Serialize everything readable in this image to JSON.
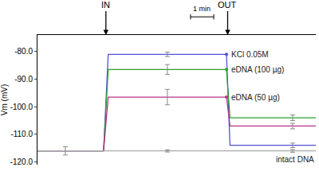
{
  "chart_data": {
    "type": "line",
    "y_label": "Vm (mV)",
    "x": [
      0,
      1.2,
      2.85,
      3.05,
      5.6,
      8.15,
      8.3,
      11,
      12
    ],
    "series": [
      {
        "name": "KCl 0.05M",
        "color": "#5050dc",
        "values": [
          -116,
          -116,
          -116,
          -81,
          -81,
          -81,
          -114,
          -114,
          -114
        ],
        "errors": [
          null,
          null,
          null,
          null,
          0.8,
          null,
          null,
          0.8,
          null
        ]
      },
      {
        "name": "eDNA (100 µg)",
        "color": "#2ca02c",
        "values": [
          -116,
          -116,
          -116,
          -86.5,
          -86.5,
          -86.5,
          -104,
          -104,
          -104
        ],
        "errors": [
          null,
          null,
          null,
          null,
          1.8,
          null,
          null,
          1,
          null
        ]
      },
      {
        "name": "eDNA (50 µg)",
        "color": "#b8308c",
        "values": [
          -116,
          -116,
          -116,
          -96.5,
          -96.5,
          -96.5,
          -107,
          -107,
          -107
        ],
        "errors": [
          null,
          null,
          null,
          null,
          2.8,
          null,
          null,
          1,
          null
        ]
      },
      {
        "name": "intact DNA",
        "color": "#aaaaaa",
        "values": [
          -116,
          -116,
          -116,
          -116,
          -116,
          -116,
          -116,
          -116,
          -116
        ],
        "errors": [
          null,
          1.5,
          null,
          null,
          0.4,
          null,
          null,
          0.5,
          null
        ]
      }
    ],
    "events": [
      {
        "text": "IN",
        "x": 2.95
      },
      {
        "text": "OUT",
        "x": 8.2
      }
    ],
    "scale_bar": {
      "text": "1 min",
      "x": 6.6,
      "length": 1
    },
    "xlim": [
      0,
      12
    ],
    "ylim": [
      -121,
      -74
    ],
    "yticks": [
      {
        "value": -80,
        "label": "-80.0"
      },
      {
        "value": -90,
        "label": "-90.0"
      },
      {
        "value": -100,
        "label": "-100.0"
      },
      {
        "value": -110,
        "label": "-110.0"
      },
      {
        "value": -120,
        "label": "-120.0"
      }
    ],
    "grid": false,
    "tick_labels": "y"
  }
}
